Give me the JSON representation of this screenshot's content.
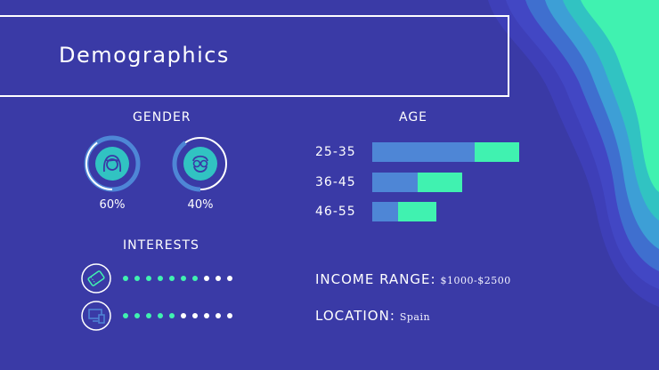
{
  "title": "Demographics",
  "gender": {
    "heading": "GENDER",
    "items": [
      {
        "icon": "female-face-icon",
        "percent_label": "60%",
        "percent": 60
      },
      {
        "icon": "male-face-icon",
        "percent_label": "40%",
        "percent": 40
      }
    ]
  },
  "age": {
    "heading": "AGE",
    "rows": [
      {
        "label": "25-35",
        "value_a": 0.7,
        "value_b": 0.3
      },
      {
        "label": "36-45",
        "value_a": 0.5,
        "value_b": 0.5
      },
      {
        "label": "46-55",
        "value_a": 0.4,
        "value_b": 0.6
      }
    ],
    "colors": {
      "a": "#4e86d6",
      "b": "#40f2b0"
    }
  },
  "interests": {
    "heading": "INTERESTS",
    "items": [
      {
        "icon": "ticket-icon",
        "filled": 7,
        "total": 10
      },
      {
        "icon": "computer-icon",
        "filled": 5,
        "total": 10
      }
    ],
    "colors": {
      "filled": "#40f2b0",
      "empty": "#ffffff"
    }
  },
  "info": {
    "income_key": "INCOME RANGE:",
    "income_value": "$1000-$2500",
    "location_key": "LOCATION:",
    "location_value": "Spain"
  },
  "colors": {
    "background": "#3a3aa6",
    "accent": "#40f2b0",
    "ring": "#4e86d6"
  }
}
